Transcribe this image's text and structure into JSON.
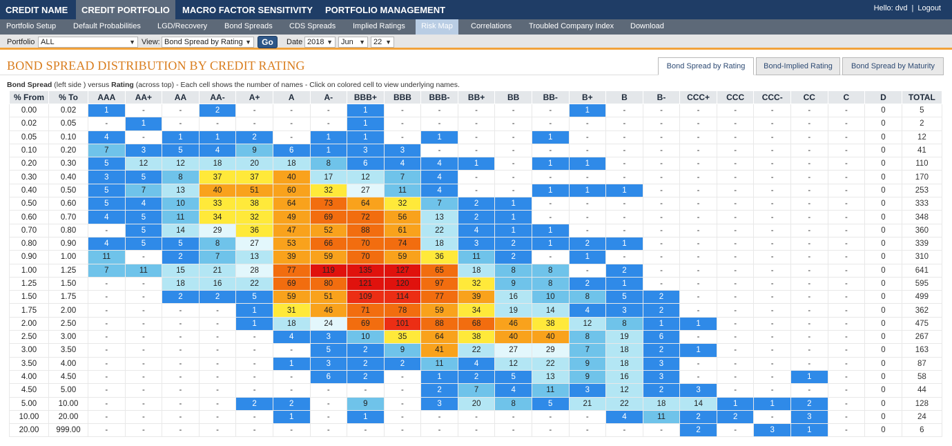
{
  "topnav": {
    "tabs": [
      {
        "label": "CREDIT NAME",
        "active": false
      },
      {
        "label": "CREDIT PORTFOLIO",
        "active": true
      },
      {
        "label": "MACRO FACTOR SENSITIVITY",
        "active": false
      },
      {
        "label": "PORTFOLIO MANAGEMENT",
        "active": false
      }
    ],
    "user": {
      "greeting": "Hello: dvd",
      "separator": "|",
      "logout": "Logout"
    }
  },
  "subnav": {
    "tabs": [
      {
        "label": "Portfolio Setup",
        "active": false
      },
      {
        "label": "Default Probabilities",
        "active": false
      },
      {
        "label": "LGD/Recovery",
        "active": false
      },
      {
        "label": "Bond Spreads",
        "active": false
      },
      {
        "label": "CDS Spreads",
        "active": false
      },
      {
        "label": "Implied Ratings",
        "active": false
      },
      {
        "label": "Risk Map",
        "active": true
      },
      {
        "label": "Correlations",
        "active": false
      },
      {
        "label": "Troubled Company Index",
        "active": false
      },
      {
        "label": "Download",
        "active": false
      }
    ]
  },
  "filters": {
    "portfolio_label": "Portfolio",
    "portfolio_value": "ALL",
    "view_label": "View:",
    "view_value": "Bond Spread by Rating",
    "go_label": "Go",
    "date_label": "Date",
    "year": "2018",
    "month": "Jun",
    "day": "22",
    "dropdown_icon": "triangle-down-icon"
  },
  "page": {
    "title": "BOND SPREAD DISTRIBUTION BY CREDIT RATING",
    "view_tabs": [
      {
        "label": "Bond Spread by Rating",
        "active": true
      },
      {
        "label": "Bond-Implied Rating",
        "active": false
      },
      {
        "label": "Bond Spread by Maturity",
        "active": false
      }
    ],
    "desc": {
      "b1": "Bond Spread",
      "t1": " (left side ) versus ",
      "b2": "Rating",
      "t2": " (across top) - Each cell shows the number of names - Click on colored cell to view underlying names."
    }
  },
  "colors": {
    "navy": "#1f3d66",
    "title_orange": "#d97d1e",
    "accent_orange": "#f2a23a",
    "heat_scale": [
      "#2f8ae8",
      "#6fc3ea",
      "#b3e6f4",
      "#e3f7fc",
      "#ffe93a",
      "#f9a21c",
      "#f26d0f",
      "#ec2e14",
      "#e0120d"
    ]
  },
  "table": {
    "headers": [
      "% From",
      "% To",
      "AAA",
      "AA+",
      "AA",
      "AA-",
      "A+",
      "A",
      "A-",
      "BBB+",
      "BBB",
      "BBB-",
      "BB+",
      "BB",
      "BB-",
      "B+",
      "B",
      "B-",
      "CCC+",
      "CCC",
      "CCC-",
      "CC",
      "C",
      "D",
      "TOTAL"
    ],
    "rows": [
      {
        "from": "0.00",
        "to": "0.02",
        "cells": [
          "1",
          "-",
          "-",
          "2",
          "-",
          "-",
          "-",
          "1",
          "-",
          "-",
          "-",
          "-",
          "-",
          "1",
          "-",
          "-",
          "-",
          "-",
          "-",
          "-",
          "-",
          "0"
        ],
        "total": "5"
      },
      {
        "from": "0.02",
        "to": "0.05",
        "cells": [
          "-",
          "1",
          "-",
          "-",
          "-",
          "-",
          "-",
          "1",
          "-",
          "-",
          "-",
          "-",
          "-",
          "-",
          "-",
          "-",
          "-",
          "-",
          "-",
          "-",
          "-",
          "0"
        ],
        "total": "2"
      },
      {
        "from": "0.05",
        "to": "0.10",
        "cells": [
          "4",
          "-",
          "1",
          "1",
          "2",
          "-",
          "1",
          "1",
          "-",
          "1",
          "-",
          "-",
          "1",
          "-",
          "-",
          "-",
          "-",
          "-",
          "-",
          "-",
          "-",
          "0"
        ],
        "total": "12"
      },
      {
        "from": "0.10",
        "to": "0.20",
        "cells": [
          "7",
          "3",
          "5",
          "4",
          "9",
          "6",
          "1",
          "3",
          "3",
          "-",
          "-",
          "-",
          "-",
          "-",
          "-",
          "-",
          "-",
          "-",
          "-",
          "-",
          "-",
          "0"
        ],
        "total": "41"
      },
      {
        "from": "0.20",
        "to": "0.30",
        "cells": [
          "5",
          "12",
          "12",
          "18",
          "20",
          "18",
          "8",
          "6",
          "4",
          "4",
          "1",
          "-",
          "1",
          "1",
          "-",
          "-",
          "-",
          "-",
          "-",
          "-",
          "-",
          "0"
        ],
        "total": "110"
      },
      {
        "from": "0.30",
        "to": "0.40",
        "cells": [
          "3",
          "5",
          "8",
          "37",
          "37",
          "40",
          "17",
          "12",
          "7",
          "4",
          "-",
          "-",
          "-",
          "-",
          "-",
          "-",
          "-",
          "-",
          "-",
          "-",
          "-",
          "0"
        ],
        "total": "170"
      },
      {
        "from": "0.40",
        "to": "0.50",
        "cells": [
          "5",
          "7",
          "13",
          "40",
          "51",
          "60",
          "32",
          "27",
          "11",
          "4",
          "-",
          "-",
          "1",
          "1",
          "1",
          "-",
          "-",
          "-",
          "-",
          "-",
          "-",
          "0"
        ],
        "total": "253"
      },
      {
        "from": "0.50",
        "to": "0.60",
        "cells": [
          "5",
          "4",
          "10",
          "33",
          "38",
          "64",
          "73",
          "64",
          "32",
          "7",
          "2",
          "1",
          "-",
          "-",
          "-",
          "-",
          "-",
          "-",
          "-",
          "-",
          "-",
          "0"
        ],
        "total": "333"
      },
      {
        "from": "0.60",
        "to": "0.70",
        "cells": [
          "4",
          "5",
          "11",
          "34",
          "32",
          "49",
          "69",
          "72",
          "56",
          "13",
          "2",
          "1",
          "-",
          "-",
          "-",
          "-",
          "-",
          "-",
          "-",
          "-",
          "-",
          "0"
        ],
        "total": "348"
      },
      {
        "from": "0.70",
        "to": "0.80",
        "cells": [
          "-",
          "5",
          "14",
          "29",
          "36",
          "47",
          "52",
          "88",
          "61",
          "22",
          "4",
          "1",
          "1",
          "-",
          "-",
          "-",
          "-",
          "-",
          "-",
          "-",
          "-",
          "0"
        ],
        "total": "360"
      },
      {
        "from": "0.80",
        "to": "0.90",
        "cells": [
          "4",
          "5",
          "5",
          "8",
          "27",
          "53",
          "66",
          "70",
          "74",
          "18",
          "3",
          "2",
          "1",
          "2",
          "1",
          "-",
          "-",
          "-",
          "-",
          "-",
          "-",
          "0"
        ],
        "total": "339"
      },
      {
        "from": "0.90",
        "to": "1.00",
        "cells": [
          "11",
          "-",
          "2",
          "7",
          "13",
          "39",
          "59",
          "70",
          "59",
          "36",
          "11",
          "2",
          "-",
          "1",
          "-",
          "-",
          "-",
          "-",
          "-",
          "-",
          "-",
          "0"
        ],
        "total": "310"
      },
      {
        "from": "1.00",
        "to": "1.25",
        "cells": [
          "7",
          "11",
          "15",
          "21",
          "28",
          "77",
          "119",
          "135",
          "127",
          "65",
          "18",
          "8",
          "8",
          "-",
          "2",
          "-",
          "-",
          "-",
          "-",
          "-",
          "-",
          "0"
        ],
        "total": "641"
      },
      {
        "from": "1.25",
        "to": "1.50",
        "cells": [
          "-",
          "-",
          "18",
          "16",
          "22",
          "69",
          "80",
          "121",
          "120",
          "97",
          "32",
          "9",
          "8",
          "2",
          "1",
          "-",
          "-",
          "-",
          "-",
          "-",
          "-",
          "0"
        ],
        "total": "595"
      },
      {
        "from": "1.50",
        "to": "1.75",
        "cells": [
          "-",
          "-",
          "2",
          "2",
          "5",
          "59",
          "51",
          "109",
          "114",
          "77",
          "39",
          "16",
          "10",
          "8",
          "5",
          "2",
          "-",
          "-",
          "-",
          "-",
          "-",
          "0"
        ],
        "total": "499"
      },
      {
        "from": "1.75",
        "to": "2.00",
        "cells": [
          "-",
          "-",
          "-",
          "-",
          "1",
          "31",
          "46",
          "71",
          "78",
          "59",
          "34",
          "19",
          "14",
          "4",
          "3",
          "2",
          "-",
          "-",
          "-",
          "-",
          "-",
          "0"
        ],
        "total": "362"
      },
      {
        "from": "2.00",
        "to": "2.50",
        "cells": [
          "-",
          "-",
          "-",
          "-",
          "1",
          "18",
          "24",
          "69",
          "101",
          "88",
          "68",
          "46",
          "38",
          "12",
          "8",
          "1",
          "1",
          "-",
          "-",
          "-",
          "-",
          "0"
        ],
        "total": "475"
      },
      {
        "from": "2.50",
        "to": "3.00",
        "cells": [
          "-",
          "-",
          "-",
          "-",
          "-",
          "4",
          "3",
          "10",
          "35",
          "64",
          "38",
          "40",
          "40",
          "8",
          "19",
          "6",
          "-",
          "-",
          "-",
          "-",
          "-",
          "0"
        ],
        "total": "267"
      },
      {
        "from": "3.00",
        "to": "3.50",
        "cells": [
          "-",
          "-",
          "-",
          "-",
          "-",
          "-",
          "5",
          "2",
          "9",
          "41",
          "22",
          "27",
          "29",
          "7",
          "18",
          "2",
          "1",
          "-",
          "-",
          "-",
          "-",
          "0"
        ],
        "total": "163"
      },
      {
        "from": "3.50",
        "to": "4.00",
        "cells": [
          "-",
          "-",
          "-",
          "-",
          "-",
          "1",
          "3",
          "2",
          "2",
          "11",
          "4",
          "12",
          "22",
          "9",
          "18",
          "3",
          "-",
          "-",
          "-",
          "-",
          "-",
          "0"
        ],
        "total": "87"
      },
      {
        "from": "4.00",
        "to": "4.50",
        "cells": [
          "-",
          "-",
          "-",
          "-",
          "-",
          "-",
          "6",
          "2",
          "-",
          "1",
          "2",
          "5",
          "13",
          "9",
          "16",
          "3",
          "-",
          "-",
          "-",
          "1",
          "-",
          "0"
        ],
        "total": "58"
      },
      {
        "from": "4.50",
        "to": "5.00",
        "cells": [
          "-",
          "-",
          "-",
          "-",
          "-",
          "-",
          "-",
          "-",
          "-",
          "2",
          "7",
          "4",
          "11",
          "3",
          "12",
          "2",
          "3",
          "-",
          "-",
          "-",
          "-",
          "0"
        ],
        "total": "44"
      },
      {
        "from": "5.00",
        "to": "10.00",
        "cells": [
          "-",
          "-",
          "-",
          "-",
          "2",
          "2",
          "-",
          "9",
          "-",
          "3",
          "20",
          "8",
          "5",
          "21",
          "22",
          "18",
          "14",
          "1",
          "1",
          "2",
          "-",
          "0"
        ],
        "total": "128"
      },
      {
        "from": "10.00",
        "to": "20.00",
        "cells": [
          "-",
          "-",
          "-",
          "-",
          "-",
          "1",
          "-",
          "1",
          "-",
          "-",
          "-",
          "-",
          "-",
          "-",
          "4",
          "11",
          "2",
          "2",
          "-",
          "3",
          "-",
          "0"
        ],
        "total": "24"
      },
      {
        "from": "20.00",
        "to": "999.00",
        "cells": [
          "-",
          "-",
          "-",
          "-",
          "-",
          "-",
          "-",
          "-",
          "-",
          "-",
          "-",
          "-",
          "-",
          "-",
          "-",
          "-",
          "2",
          "-",
          "3",
          "1",
          "-",
          "0"
        ],
        "total": "6"
      }
    ]
  }
}
